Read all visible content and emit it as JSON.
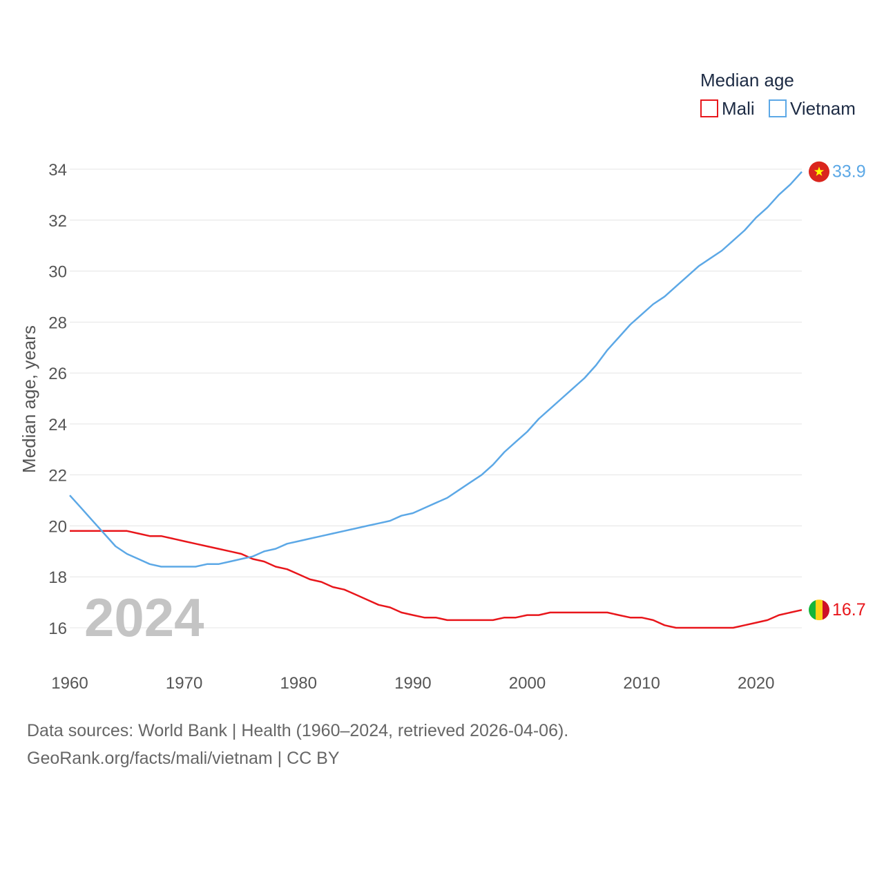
{
  "chart_data": {
    "type": "line",
    "ylabel": "Median age, years",
    "xlabel": "",
    "xlim": [
      1960,
      2024
    ],
    "ylim": [
      14.5,
      34.2
    ],
    "yticks": [
      16,
      18,
      20,
      22,
      24,
      26,
      28,
      30,
      32,
      34
    ],
    "xticks": [
      1960,
      1970,
      1980,
      1990,
      2000,
      2010,
      2020
    ],
    "grid": true,
    "legend": {
      "title": "Median age",
      "position": "top-right"
    },
    "year_label": "2024",
    "x": [
      1960,
      1961,
      1962,
      1963,
      1964,
      1965,
      1966,
      1967,
      1968,
      1969,
      1970,
      1971,
      1972,
      1973,
      1974,
      1975,
      1976,
      1977,
      1978,
      1979,
      1980,
      1981,
      1982,
      1983,
      1984,
      1985,
      1986,
      1987,
      1988,
      1989,
      1990,
      1991,
      1992,
      1993,
      1994,
      1995,
      1996,
      1997,
      1998,
      1999,
      2000,
      2001,
      2002,
      2003,
      2004,
      2005,
      2006,
      2007,
      2008,
      2009,
      2010,
      2011,
      2012,
      2013,
      2014,
      2015,
      2016,
      2017,
      2018,
      2019,
      2020,
      2021,
      2022,
      2023,
      2024
    ],
    "series": [
      {
        "name": "Mali",
        "color": "#e8161b",
        "flag": "mali-flag",
        "end_label": "16.7",
        "values": [
          19.8,
          19.8,
          19.8,
          19.8,
          19.8,
          19.8,
          19.7,
          19.6,
          19.6,
          19.5,
          19.4,
          19.3,
          19.2,
          19.1,
          19.0,
          18.9,
          18.7,
          18.6,
          18.4,
          18.3,
          18.1,
          17.9,
          17.8,
          17.6,
          17.5,
          17.3,
          17.1,
          16.9,
          16.8,
          16.6,
          16.5,
          16.4,
          16.4,
          16.3,
          16.3,
          16.3,
          16.3,
          16.3,
          16.4,
          16.4,
          16.5,
          16.5,
          16.6,
          16.6,
          16.6,
          16.6,
          16.6,
          16.6,
          16.5,
          16.4,
          16.4,
          16.3,
          16.1,
          16.0,
          16.0,
          16.0,
          16.0,
          16.0,
          16.0,
          16.1,
          16.2,
          16.3,
          16.5,
          16.6,
          16.7
        ]
      },
      {
        "name": "Vietnam",
        "color": "#5ca8e6",
        "flag": "vietnam-flag",
        "end_label": "33.9",
        "values": [
          21.2,
          20.7,
          20.2,
          19.7,
          19.2,
          18.9,
          18.7,
          18.5,
          18.4,
          18.4,
          18.4,
          18.4,
          18.5,
          18.5,
          18.6,
          18.7,
          18.8,
          19.0,
          19.1,
          19.3,
          19.4,
          19.5,
          19.6,
          19.7,
          19.8,
          19.9,
          20.0,
          20.1,
          20.2,
          20.4,
          20.5,
          20.7,
          20.9,
          21.1,
          21.4,
          21.7,
          22.0,
          22.4,
          22.9,
          23.3,
          23.7,
          24.2,
          24.6,
          25.0,
          25.4,
          25.8,
          26.3,
          26.9,
          27.4,
          27.9,
          28.3,
          28.7,
          29.0,
          29.4,
          29.8,
          30.2,
          30.5,
          30.8,
          31.2,
          31.6,
          32.1,
          32.5,
          33.0,
          33.4,
          33.9
        ]
      }
    ]
  },
  "footer": {
    "line1": "Data sources: World Bank | Health (1960–2024, retrieved 2026-04-06).",
    "line2": "GeoRank.org/facts/mali/vietnam | CC BY"
  }
}
